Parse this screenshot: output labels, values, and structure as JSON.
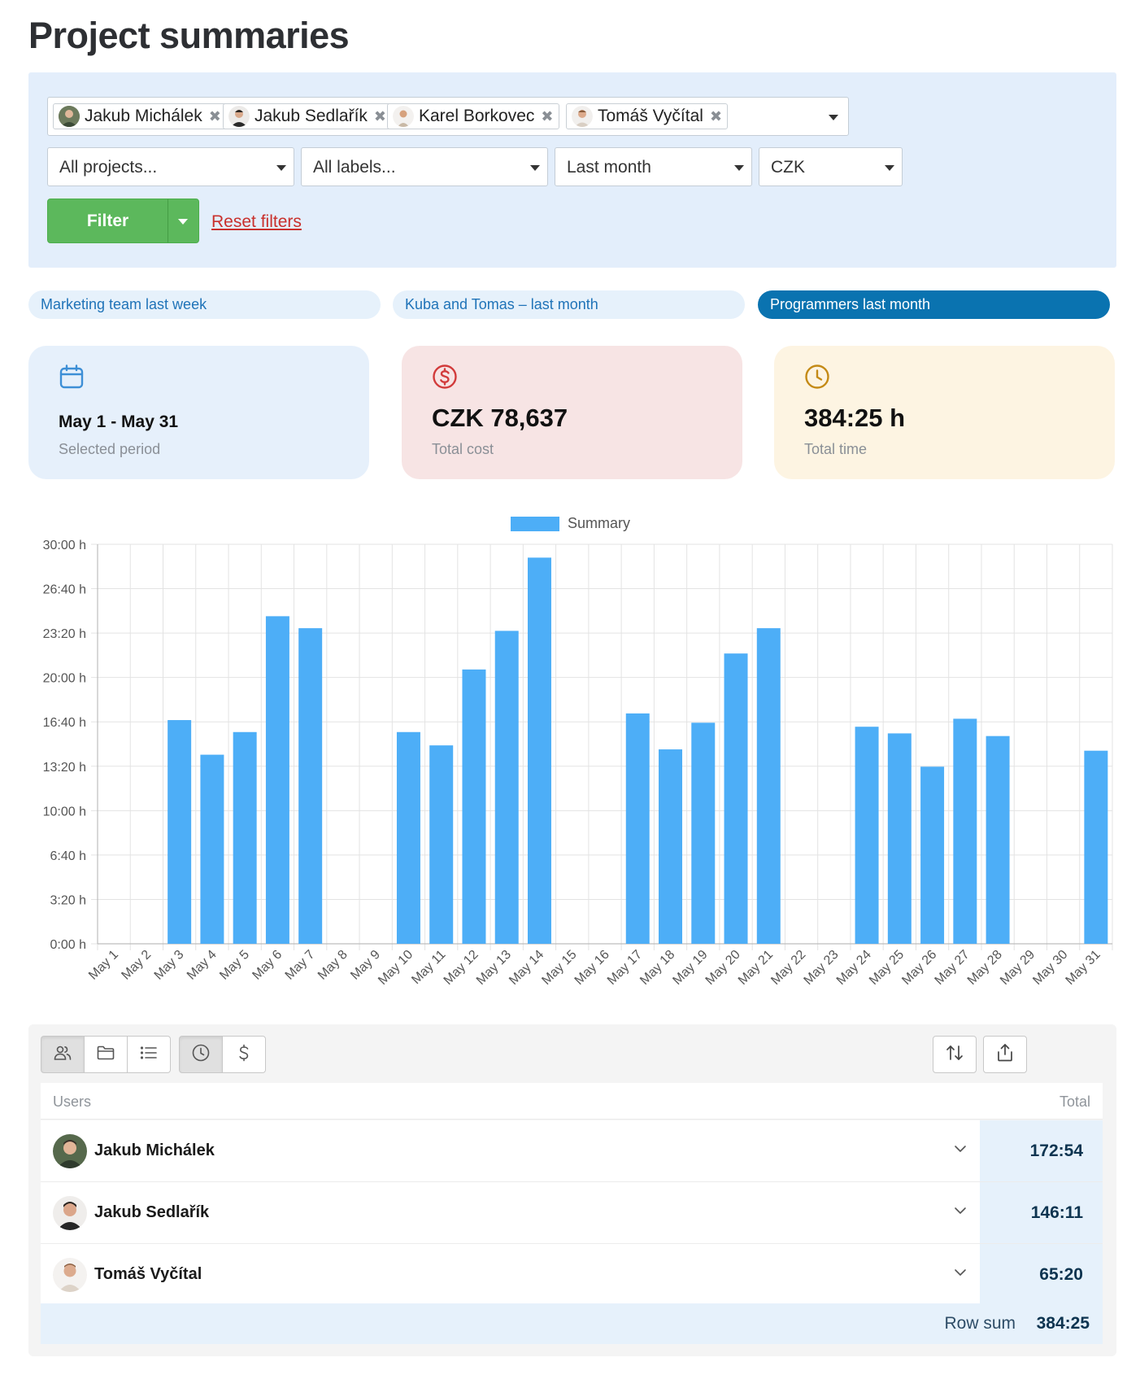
{
  "page": {
    "title": "Project summaries"
  },
  "filters": {
    "users": [
      {
        "name": "Jakub Michálek",
        "avatar": "avatar-photo-jakub-michalek"
      },
      {
        "name": "Jakub Sedlařík",
        "avatar": "avatar-photo-jakub-sedlarik"
      },
      {
        "name": "Karel Borkovec",
        "avatar": "avatar-photo-karel-borkovec"
      },
      {
        "name": "Tomáš Vyčítal",
        "avatar": "avatar-photo-tomas-vycital"
      }
    ],
    "projects_value": "All projects...",
    "labels_value": "All labels...",
    "period_value": "Last month",
    "currency_value": "CZK",
    "filter_button": "Filter",
    "reset_link": "Reset filters"
  },
  "saved_filters": [
    {
      "label": "Marketing team last week",
      "active": false
    },
    {
      "label": "Kuba and Tomas – last month",
      "active": false
    },
    {
      "label": "Programmers last month",
      "active": true
    }
  ],
  "stats": {
    "period": {
      "value": "May 1 - May 31",
      "label": "Selected period",
      "icon": "calendar-icon",
      "color": "#e6f0fb"
    },
    "cost": {
      "value": "CZK 78,637",
      "label": "Total cost",
      "icon": "dollar-circle-icon",
      "color": "#f7e4e4"
    },
    "time": {
      "value": "384:25 h",
      "label": "Total time",
      "icon": "clock-icon",
      "color": "#fdf4e2"
    }
  },
  "chart_data": {
    "type": "bar",
    "title": "",
    "xlabel": "",
    "ylabel": "",
    "legend": "Summary",
    "legend_position": "top",
    "grid": true,
    "bar_color": "#4daef7",
    "ylim": [
      0,
      30
    ],
    "y_ticks": [
      "0:00 h",
      "3:20 h",
      "6:40 h",
      "10:00 h",
      "13:20 h",
      "16:40 h",
      "20:00 h",
      "23:20 h",
      "26:40 h",
      "30:00 h"
    ],
    "categories": [
      "May 1",
      "May 2",
      "May 3",
      "May 4",
      "May 5",
      "May 6",
      "May 7",
      "May 8",
      "May 9",
      "May 10",
      "May 11",
      "May 12",
      "May 13",
      "May 14",
      "May 15",
      "May 16",
      "May 17",
      "May 18",
      "May 19",
      "May 20",
      "May 21",
      "May 22",
      "May 23",
      "May 24",
      "May 25",
      "May 26",
      "May 27",
      "May 28",
      "May 29",
      "May 30",
      "May 31"
    ],
    "series": [
      {
        "name": "Summary",
        "values": [
          0,
          0,
          16.8,
          14.2,
          15.9,
          24.6,
          23.7,
          0,
          0,
          15.9,
          14.9,
          20.6,
          23.5,
          29.0,
          0,
          0,
          17.3,
          14.6,
          16.6,
          21.8,
          23.7,
          0,
          0,
          16.3,
          15.8,
          13.3,
          16.9,
          15.6,
          0,
          0,
          14.5
        ]
      }
    ]
  },
  "table": {
    "toolbar": {
      "group_users_icon": "users-icon",
      "group_projects_icon": "folder-icon",
      "group_labels_icon": "list-icon",
      "metric_time_icon": "clock-icon",
      "metric_cost_icon": "dollar-icon",
      "sort_icon": "sort-arrows-icon",
      "export_icon": "share-upload-icon"
    },
    "col_users": "Users",
    "col_total": "Total",
    "rows": [
      {
        "name": "Jakub Michálek",
        "total": "172:54"
      },
      {
        "name": "Jakub Sedlařík",
        "total": "146:11"
      },
      {
        "name": "Tomáš Vyčítal",
        "total": "65:20"
      }
    ],
    "row_sum_label": "Row sum",
    "row_sum_value": "384:25"
  }
}
